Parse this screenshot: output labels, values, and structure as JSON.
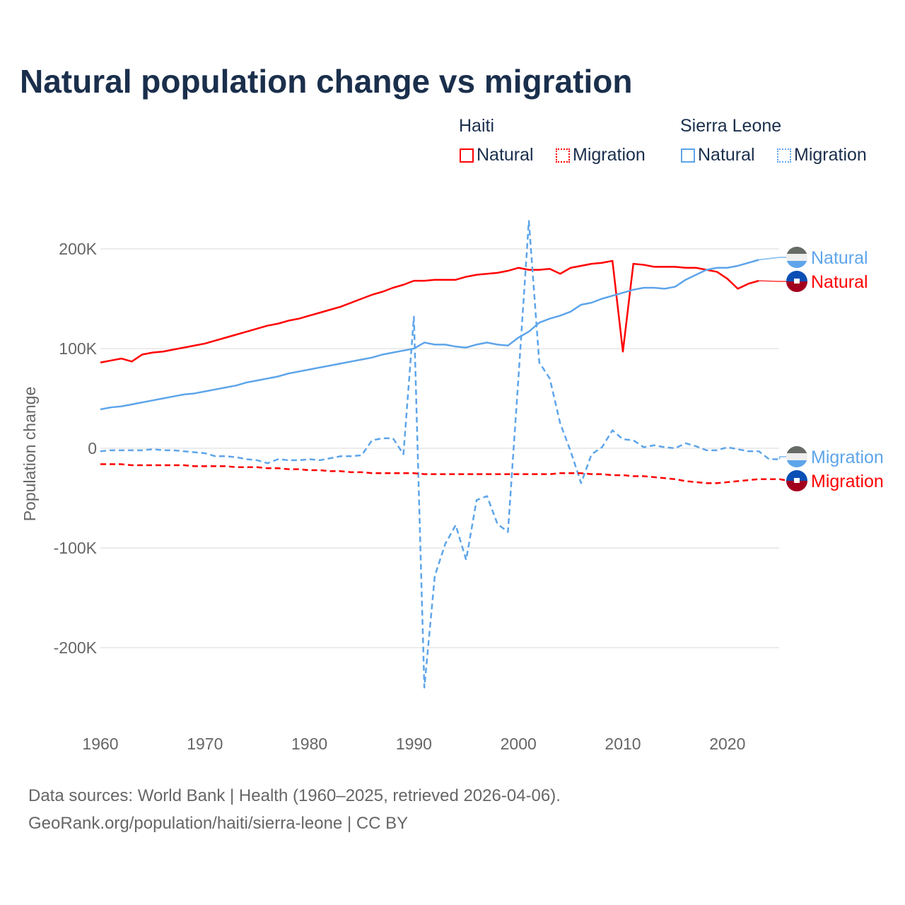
{
  "title": "Natural population change vs migration",
  "legend": {
    "groups": [
      {
        "name": "Haiti",
        "items": [
          {
            "label": "Natural",
            "style": "solid",
            "color": "#ff0000"
          },
          {
            "label": "Migration",
            "style": "dotted",
            "color": "#ff0000"
          }
        ]
      },
      {
        "name": "Sierra Leone",
        "items": [
          {
            "label": "Natural",
            "style": "solid",
            "color": "#5ea5ea"
          },
          {
            "label": "Migration",
            "style": "dotted",
            "color": "#5ea5ea"
          }
        ]
      }
    ]
  },
  "end_labels": [
    {
      "text": "Natural",
      "country": "Sierra Leone",
      "color": "#5ea5ea",
      "icon": "sierra-leone-flag-icon"
    },
    {
      "text": "Natural",
      "country": "Haiti",
      "color": "#ff0000",
      "icon": "haiti-flag-icon"
    },
    {
      "text": "Migration",
      "country": "Sierra Leone",
      "color": "#5ea5ea",
      "icon": "sierra-leone-flag-icon"
    },
    {
      "text": "Migration",
      "country": "Haiti",
      "color": "#ff0000",
      "icon": "haiti-flag-icon"
    }
  ],
  "footer": {
    "line1": "Data sources: World Bank | Health (1960–2025, retrieved 2026-04-06).",
    "line2": "GeoRank.org/population/haiti/sierra-leone | CC BY"
  },
  "chart_data": {
    "type": "line",
    "title": "Natural population change vs migration",
    "xlabel": "",
    "ylabel": "Population change",
    "xlim": [
      1960,
      2025
    ],
    "ylim": [
      -250000,
      230000
    ],
    "x_ticks": [
      1960,
      1970,
      1980,
      1990,
      2000,
      2010,
      2020
    ],
    "x_tick_labels": [
      "1960",
      "1970",
      "1980",
      "1990",
      "2000",
      "2010",
      "2020"
    ],
    "y_ticks": [
      200000,
      100000,
      0,
      -100000,
      -200000
    ],
    "y_tick_labels": [
      "200K",
      "100K",
      "0",
      "-100K",
      "-200K"
    ],
    "grid": "horizontal",
    "legend_position": "top-right",
    "series": [
      {
        "name": "Haiti Natural",
        "color": "#ff0000",
        "dash": false,
        "start_year": 1960,
        "values_k": [
          86,
          88,
          90,
          87,
          94,
          96,
          97,
          99,
          101,
          103,
          105,
          108,
          111,
          114,
          117,
          120,
          123,
          125,
          128,
          130,
          133,
          136,
          139,
          142,
          146,
          150,
          154,
          157,
          161,
          164,
          168,
          168,
          169,
          169,
          169,
          172,
          174,
          175,
          176,
          178,
          181,
          179,
          179,
          180,
          175,
          181,
          183,
          185,
          186,
          188,
          97,
          185,
          184,
          182,
          182,
          182,
          181,
          181,
          179,
          177,
          170,
          160,
          165,
          168
        ]
      },
      {
        "name": "Sierra Leone Natural",
        "color": "#5ea5ea",
        "dash": false,
        "start_year": 1960,
        "values_k": [
          39,
          41,
          42,
          44,
          46,
          48,
          50,
          52,
          54,
          55,
          57,
          59,
          61,
          63,
          66,
          68,
          70,
          72,
          75,
          77,
          79,
          81,
          83,
          85,
          87,
          89,
          91,
          94,
          96,
          98,
          100,
          106,
          104,
          104,
          102,
          101,
          104,
          106,
          104,
          103,
          111,
          117,
          126,
          130,
          133,
          137,
          144,
          146,
          150,
          153,
          156,
          159,
          161,
          161,
          160,
          162,
          169,
          174,
          179,
          181,
          181,
          183,
          186,
          189
        ]
      },
      {
        "name": "Sierra Leone Migration",
        "color": "#5ea5ea",
        "dash": true,
        "start_year": 1960,
        "values_k": [
          -3,
          -2,
          -2,
          -2,
          -2,
          -1,
          -2,
          -2,
          -3,
          -4,
          -5,
          -8,
          -8,
          -9,
          -11,
          -12,
          -15,
          -11,
          -12,
          -12,
          -11,
          -12,
          -10,
          -8,
          -8,
          -7,
          8,
          10,
          10,
          -6,
          132,
          -240,
          -128,
          -96,
          -77,
          -112,
          -52,
          -48,
          -76,
          -84,
          70,
          228,
          86,
          70,
          25,
          -3,
          -35,
          -6,
          1,
          18,
          9,
          8,
          1,
          3,
          1,
          0,
          5,
          2,
          -2,
          -2,
          1,
          -1,
          -3,
          -3,
          -11,
          -11
        ]
      },
      {
        "name": "Haiti Migration",
        "color": "#ff0000",
        "dash": true,
        "start_year": 1960,
        "values_k": [
          -16,
          -16,
          -16,
          -17,
          -17,
          -17,
          -17,
          -17,
          -17,
          -18,
          -18,
          -18,
          -18,
          -19,
          -19,
          -19,
          -20,
          -20,
          -21,
          -21,
          -22,
          -22,
          -23,
          -23,
          -24,
          -24,
          -25,
          -25,
          -25,
          -25,
          -25,
          -26,
          -26,
          -26,
          -26,
          -26,
          -26,
          -26,
          -26,
          -26,
          -26,
          -26,
          -26,
          -26,
          -25,
          -25,
          -25,
          -26,
          -26,
          -27,
          -27,
          -28,
          -28,
          -29,
          -30,
          -31,
          -33,
          -34,
          -35,
          -35,
          -34,
          -33,
          -32,
          -31,
          -31,
          -31,
          -33
        ]
      }
    ]
  }
}
